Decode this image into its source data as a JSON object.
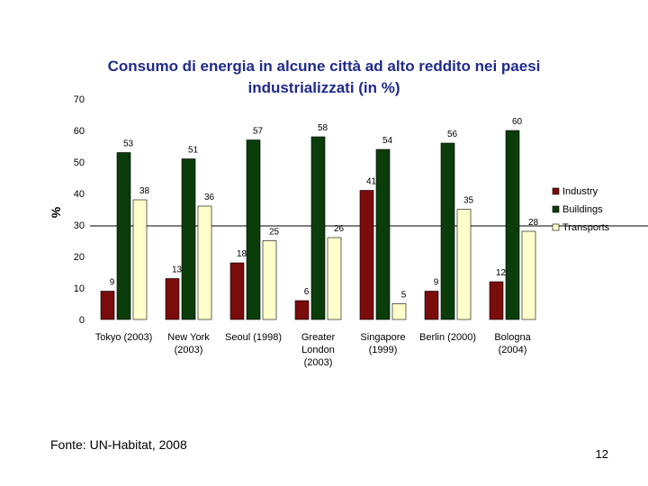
{
  "slide": {
    "source_note": "Fonte: UN-Habitat, 2008",
    "page_number": "12"
  },
  "chart_data": {
    "type": "bar",
    "title": "Consumo di energia in alcune città ad alto reddito nei paesi industrializzati (in %)",
    "ylabel": "%",
    "xlabel": "",
    "ylim": [
      0,
      70
    ],
    "yticks": [
      0,
      10,
      20,
      30,
      40,
      50,
      60,
      70
    ],
    "categories": [
      [
        "Tokyo (2003)"
      ],
      [
        "New York",
        "(2003)"
      ],
      [
        "Seoul (1998)"
      ],
      [
        "Greater",
        "London",
        "(2003)"
      ],
      [
        "Singapore",
        "(1999)"
      ],
      [
        "Berlin (2000)"
      ],
      [
        "Bologna",
        "(2004)"
      ]
    ],
    "series": [
      {
        "name": "Industry",
        "color": "#7b0c0c",
        "values": [
          9,
          13,
          18,
          6,
          41,
          9,
          12
        ]
      },
      {
        "name": "Buildings",
        "color": "#0b3d0b",
        "values": [
          53,
          51,
          57,
          58,
          54,
          56,
          60
        ]
      },
      {
        "name": "Transports",
        "color": "#ffffcc",
        "values": [
          38,
          36,
          25,
          26,
          5,
          35,
          28
        ]
      }
    ],
    "legend_position": "right",
    "grid": false
  }
}
